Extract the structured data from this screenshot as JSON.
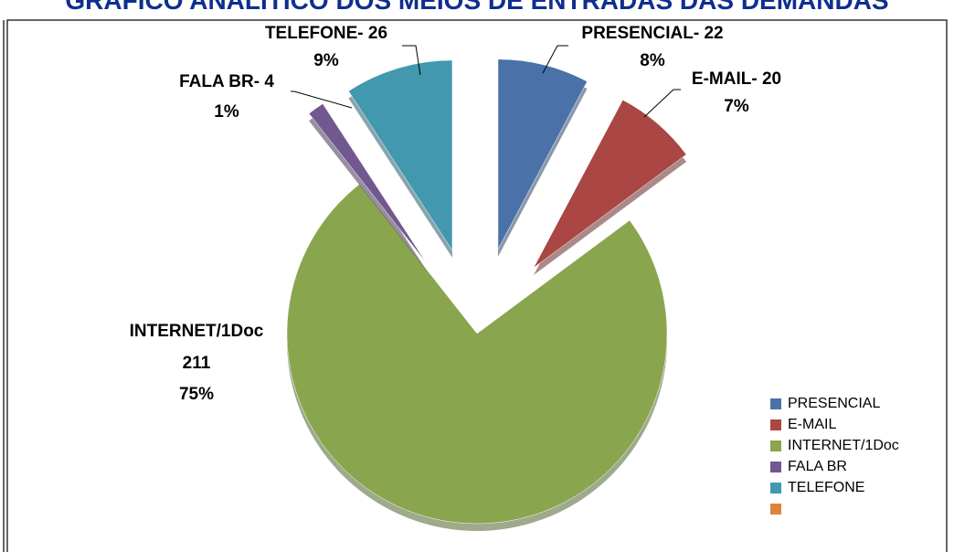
{
  "chart_data": {
    "type": "pie",
    "title": "GRÁFICO ANALÍTICO DOS MEIOS DE ENTRADAS DAS DEMANDAS",
    "categories": [
      "PRESENCIAL",
      "E-MAIL",
      "INTERNET/1Doc",
      "FALA BR",
      "TELEFONE",
      null
    ],
    "values": [
      22,
      20,
      211,
      4,
      26,
      null
    ],
    "value_labels": [
      "PRESENCIAL- 22",
      "E-MAIL- 20",
      "211",
      "FALA BR- 4",
      "TELEFONE- 26",
      null
    ],
    "percent_labels": [
      "8%",
      "7%",
      "75%",
      "1%",
      "9%",
      null
    ],
    "colors": [
      "#4a72a8",
      "#aa4643",
      "#89a54e",
      "#71588f",
      "#4198af",
      "#db843d"
    ],
    "legend": "right"
  }
}
